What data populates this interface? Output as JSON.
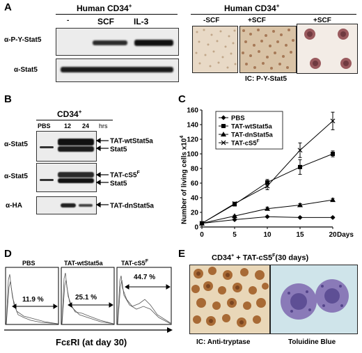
{
  "panelA": {
    "label": "A",
    "left": {
      "title": "Human CD34",
      "title_sup": "+",
      "lanes": [
        "-",
        "SCF",
        "IL-3"
      ],
      "row_labels": [
        "α-P-Y-Stat5",
        "α-Stat5"
      ]
    },
    "right": {
      "title": "Human CD34",
      "title_sup": "+",
      "conditions": [
        "-SCF",
        "+SCF",
        "+SCF"
      ],
      "caption": "IC: P-Y-Stat5"
    }
  },
  "panelB": {
    "label": "B",
    "title": "CD34",
    "title_sup": "+",
    "lanes": [
      "PBS",
      "12",
      "24"
    ],
    "time_unit": "hrs",
    "row_labels": [
      "α-Stat5",
      "α-Stat5",
      "α-HA"
    ],
    "band_labels": [
      {
        "text": "TAT-wtStat5a",
        "sup": ""
      },
      {
        "text": "Stat5",
        "sup": ""
      },
      {
        "text": "TAT-cS5",
        "sup": "F"
      },
      {
        "text": "Stat5",
        "sup": ""
      },
      {
        "text": "TAT-dnStat5a",
        "sup": ""
      }
    ]
  },
  "panelC": {
    "label": "C",
    "chart_data": {
      "type": "line",
      "ylabel": "Number of living cells x10",
      "ylabel_sup": "4",
      "xlabel": "Days",
      "x": [
        0,
        5,
        10,
        15,
        20
      ],
      "xticks": [
        "0",
        "5",
        "10",
        "15",
        "20"
      ],
      "yticks": [
        "0",
        "20",
        "40",
        "60",
        "80",
        "100",
        "120",
        "140",
        "160"
      ],
      "ylim": [
        0,
        160
      ],
      "xlim": [
        0,
        20
      ],
      "grid": false,
      "legend_position": "top-left",
      "series": [
        {
          "name": "PBS",
          "marker": "diamond",
          "values": [
            5,
            10,
            14,
            13,
            13
          ],
          "err": [
            1,
            1,
            1,
            1,
            1
          ]
        },
        {
          "name": "TAT-wtStat5a",
          "marker": "square",
          "values": [
            5,
            31,
            61,
            82,
            100
          ],
          "err": [
            1,
            2,
            4,
            10,
            4
          ]
        },
        {
          "name": "TAT-dnStat5a",
          "marker": "triangle",
          "values": [
            5,
            15,
            25,
            30,
            37
          ],
          "err": [
            1,
            1,
            2,
            2,
            2
          ]
        },
        {
          "name": "TAT-cS5",
          "name_sup": "F",
          "marker": "x",
          "values": [
            5,
            32,
            56,
            105,
            145
          ],
          "err": [
            1,
            2,
            5,
            10,
            12
          ]
        }
      ]
    }
  },
  "panelD": {
    "label": "D",
    "plots": [
      {
        "name": "PBS",
        "name_sup": "",
        "percent": "11.9 %"
      },
      {
        "name": "TAT-wtStat5a",
        "name_sup": "",
        "percent": "25.1 %"
      },
      {
        "name": "TAT-cS5",
        "name_sup": "F",
        "percent": "44.7 %"
      }
    ],
    "axis_label": "FcεRI (at day 30)"
  },
  "panelE": {
    "label": "E",
    "title_pre": "CD34",
    "title_sup1": "+",
    "title_mid": " + TAT-cS5",
    "title_sup2": "F",
    "title_post": "(30 days)",
    "captions": [
      "IC: Anti-tryptase",
      "Toluidine Blue"
    ]
  }
}
